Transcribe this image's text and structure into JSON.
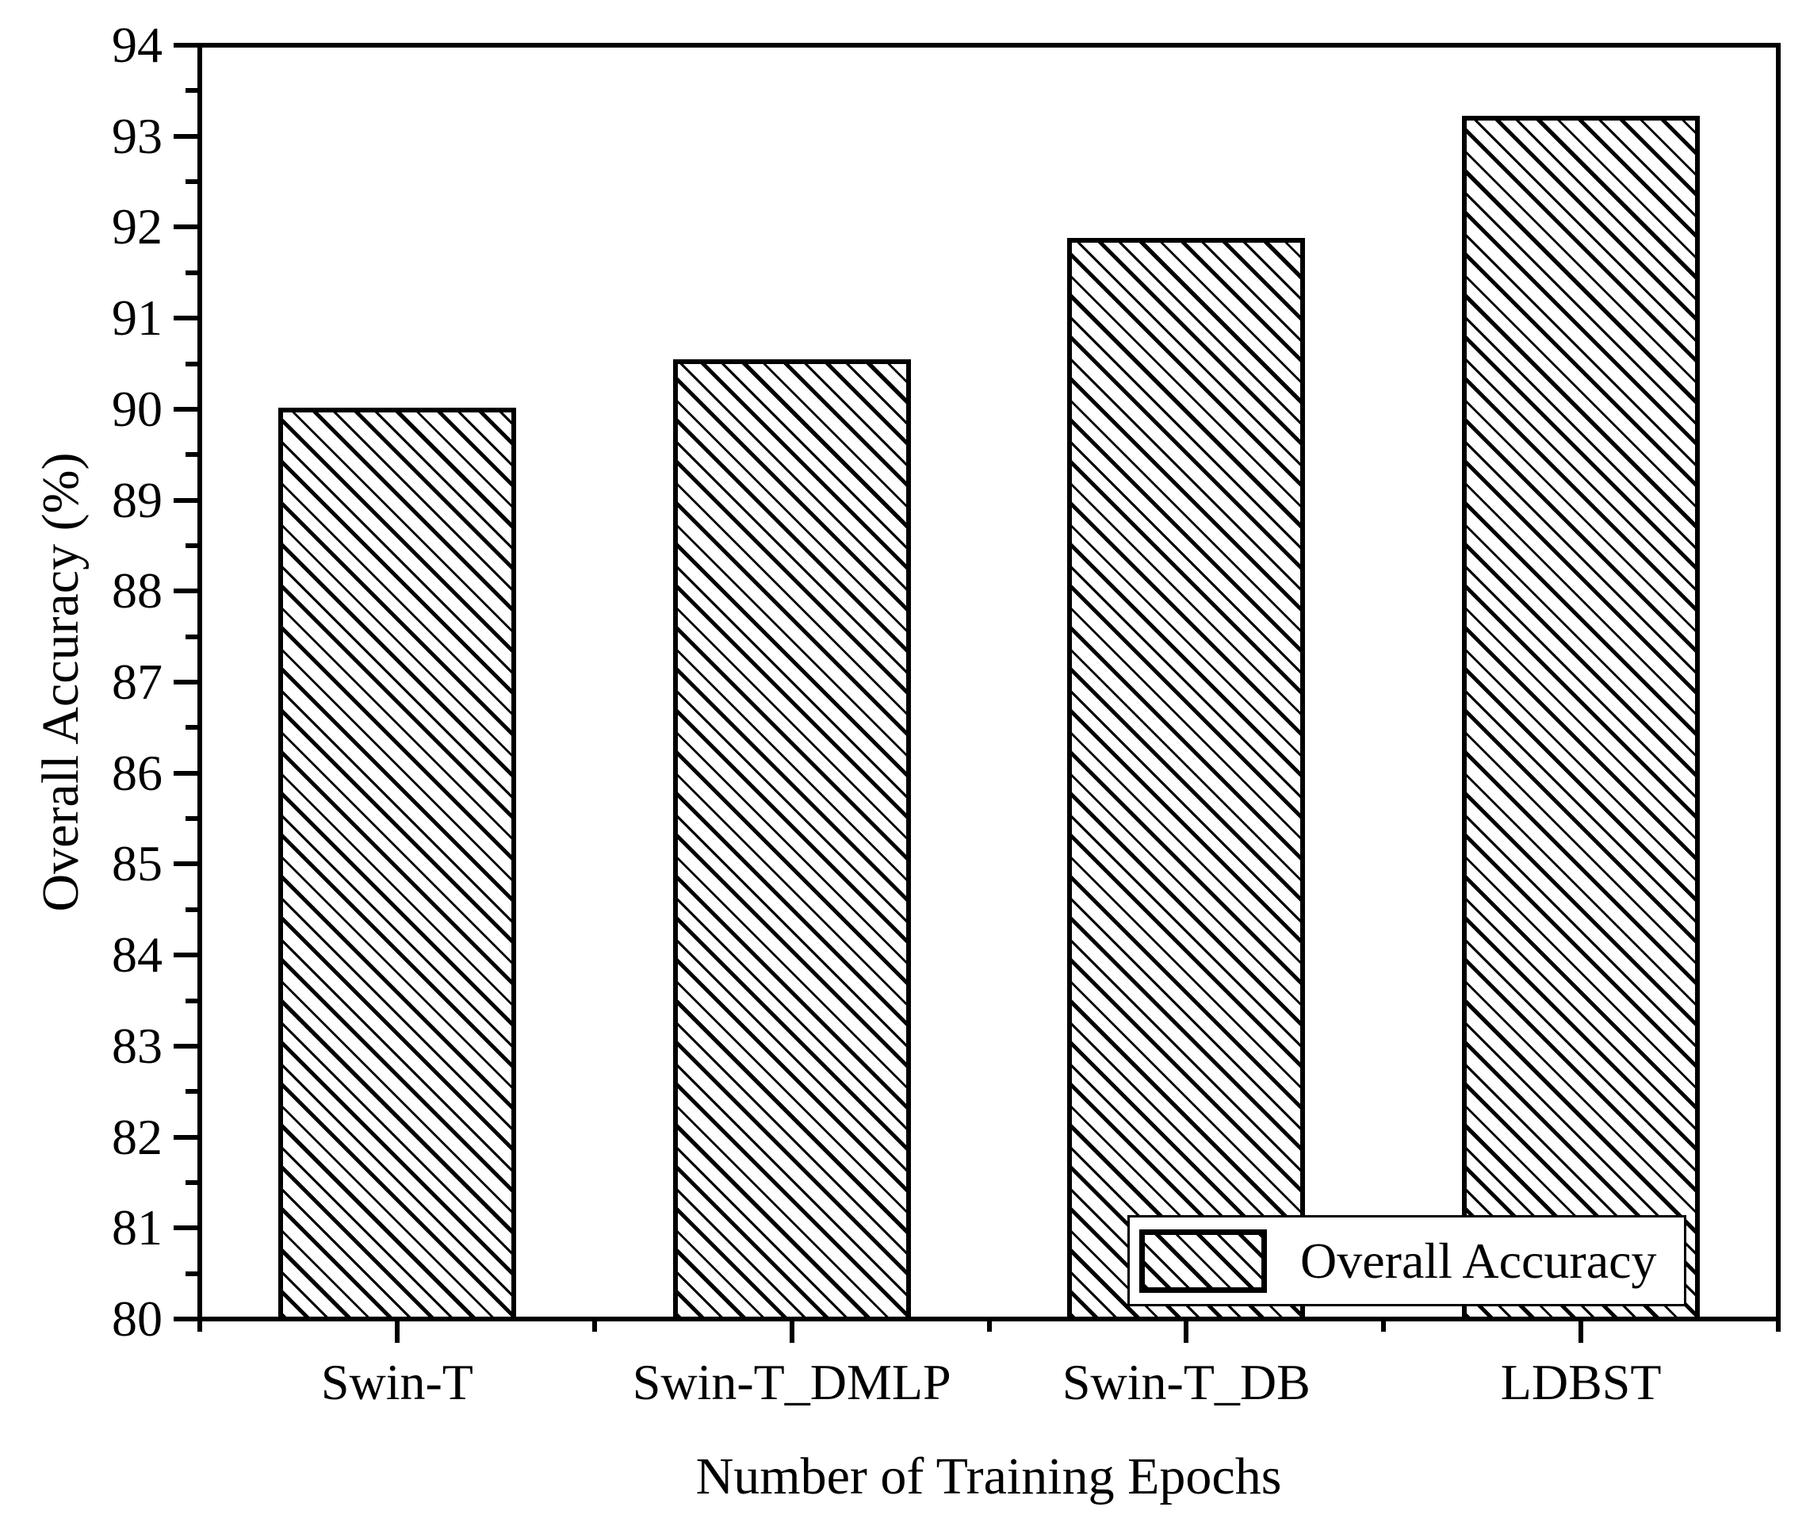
{
  "chart_data": {
    "type": "bar",
    "title": "",
    "categories": [
      "Swin-T",
      "Swin-T_DMLP",
      "Swin-T_DB",
      "LDBST"
    ],
    "series": [
      {
        "name": "Overall Accuracy",
        "values": [
          90.02,
          90.55,
          91.88,
          93.22
        ]
      }
    ],
    "xlabel": "Number of Training Epochs",
    "ylabel": "Overall Accuracy (%)",
    "ylim": [
      80,
      94
    ],
    "ytick_step": 1,
    "yminor_step": 0.5,
    "grid": false,
    "legend": {
      "entries": [
        "Overall Accuracy"
      ],
      "position": "lower-right"
    },
    "style": {
      "background": "#ffffff",
      "ink": "#000000",
      "bar_fill": "#ffffff",
      "bar_edge": "#000000",
      "hatch": "backslash-diagonal"
    }
  }
}
